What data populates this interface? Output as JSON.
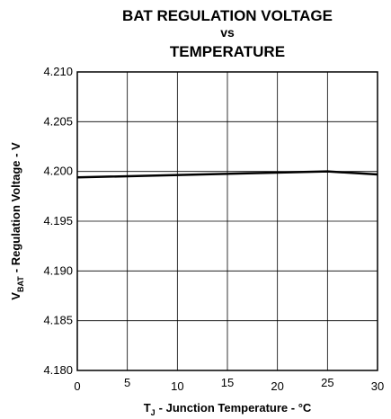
{
  "chart_data": {
    "type": "line",
    "title": [
      "BAT REGULATION VOLTAGE",
      "vs",
      "TEMPERATURE"
    ],
    "ylabel": {
      "main": "V",
      "sub": "BAT",
      "rest": "- Regulation Voltage - V"
    },
    "xlabel": {
      "main": "T",
      "sub": "J",
      "rest": "- Junction Temperature - °C"
    },
    "x": [
      0,
      25,
      30
    ],
    "series": [
      {
        "color": "#000000",
        "values": [
          4.1994,
          4.2,
          4.1997
        ]
      }
    ],
    "xlim": [
      0,
      30
    ],
    "xticks": [
      0,
      5,
      10,
      15,
      20,
      25,
      30
    ],
    "ylim": [
      4.18,
      4.21
    ],
    "yticks": [
      {
        "value": 4.18,
        "label": "4.180"
      },
      4.185,
      {
        "value": 4.19,
        "label": "4.190"
      },
      4.195,
      {
        "value": 4.2,
        "label": "4.200"
      },
      4.205,
      {
        "value": 4.21,
        "label": "4.210"
      }
    ],
    "grid": true
  }
}
